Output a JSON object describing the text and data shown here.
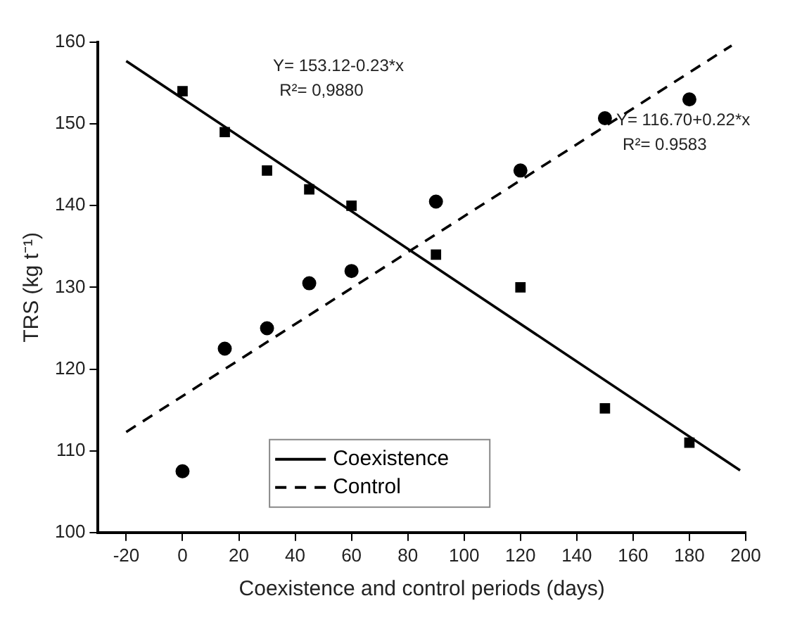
{
  "chart_data": {
    "type": "scatter",
    "xlabel": "Coexistence and control periods (days)",
    "ylabel": "TRS (kg t⁻¹)",
    "xlim": [
      -30,
      200
    ],
    "xticks": [
      -20,
      0,
      20,
      40,
      60,
      80,
      100,
      120,
      140,
      160,
      180,
      200
    ],
    "ylim": [
      100,
      160
    ],
    "yticks": [
      100,
      110,
      120,
      130,
      140,
      150,
      160
    ],
    "grid": false,
    "legend": "bottom",
    "series": [
      {
        "color": "#000000",
        "marker": "square",
        "x": [
          0,
          15,
          30,
          45,
          60,
          90,
          120,
          150,
          180
        ],
        "values": [
          154,
          149,
          144.3,
          142,
          140,
          134,
          130,
          115.2,
          111
        ]
      },
      {
        "color": "#000000",
        "marker": "circle",
        "x": [
          0,
          15,
          30,
          45,
          60,
          90,
          120,
          150,
          180
        ],
        "values": [
          107.5,
          122.5,
          125,
          130.5,
          132,
          140.5,
          144.3,
          150.7,
          153
        ]
      },
      {
        "type": "line",
        "name": "Coexistence",
        "color": "#000000",
        "line_style": "solid",
        "x": [
          -20,
          198
        ],
        "values": [
          157.7,
          107.6
        ]
      },
      {
        "type": "line",
        "name": "Control",
        "color": "#000000",
        "line_style": "dashed",
        "x": [
          -20,
          195
        ],
        "values": [
          112.3,
          159.6
        ]
      }
    ],
    "annotations": [
      "Y= 153.12-0.23*x",
      "R²= 0,9880",
      "Y= 116.70+0.22*x",
      "R²= 0.9583"
    ]
  }
}
